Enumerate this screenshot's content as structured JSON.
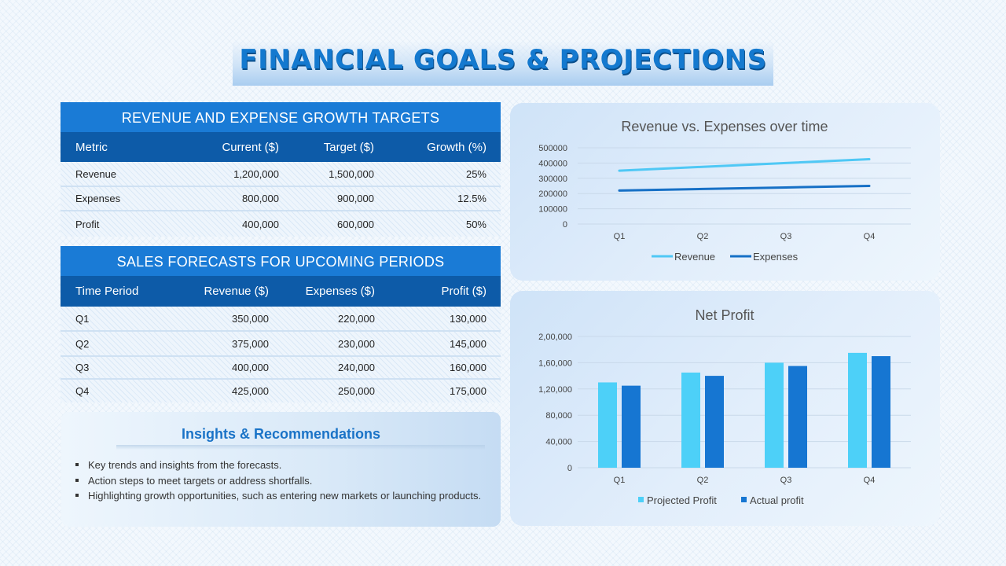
{
  "title": "FINANCIAL GOALS & PROJECTIONS",
  "table1": {
    "title": "REVENUE AND EXPENSE GROWTH TARGETS",
    "headers": [
      "Metric",
      "Current ($)",
      "Target ($)",
      "Growth (%)"
    ],
    "rows": [
      [
        "Revenue",
        "1,200,000",
        "1,500,000",
        "25%"
      ],
      [
        "Expenses",
        "800,000",
        "900,000",
        "12.5%"
      ],
      [
        "Profit",
        "400,000",
        "600,000",
        "50%"
      ]
    ]
  },
  "table2": {
    "title": "SALES FORECASTS FOR UPCOMING PERIODS",
    "headers": [
      "Time Period",
      "Revenue ($)",
      "Expenses ($)",
      "Profit ($)"
    ],
    "rows": [
      [
        "Q1",
        "350,000",
        "220,000",
        "130,000"
      ],
      [
        "Q2",
        "375,000",
        "230,000",
        "145,000"
      ],
      [
        "Q3",
        "400,000",
        "240,000",
        "160,000"
      ],
      [
        "Q4",
        "425,000",
        "250,000",
        "175,000"
      ]
    ]
  },
  "insights": {
    "title": "Insights & Recommendations",
    "items": [
      "Key trends and insights from the forecasts.",
      "Action steps to meet targets or address shortfalls.",
      "Highlighting growth opportunities, such as entering new markets or launching products."
    ]
  },
  "chart_data": [
    {
      "type": "line",
      "title": "Revenue vs. Expenses over time",
      "categories": [
        "Q1",
        "Q2",
        "Q3",
        "Q4"
      ],
      "series": [
        {
          "name": "Revenue",
          "values": [
            350000,
            375000,
            400000,
            425000
          ],
          "color": "#4fc8f5"
        },
        {
          "name": "Expenses",
          "values": [
            220000,
            230000,
            240000,
            250000
          ],
          "color": "#1670c6"
        }
      ],
      "ylim": [
        0,
        500000
      ],
      "yticks": [
        "500000",
        "400000",
        "300000",
        "200000",
        "100000",
        "0"
      ],
      "grid": true,
      "legend": "bottom"
    },
    {
      "type": "bar",
      "title": "Net Profit",
      "categories": [
        "Q1",
        "Q2",
        "Q3",
        "Q4"
      ],
      "series": [
        {
          "name": "Projected Profit",
          "values": [
            130000,
            145000,
            160000,
            175000
          ],
          "color": "#4dd0f8"
        },
        {
          "name": "Actual profit",
          "values": [
            125000,
            140000,
            155000,
            170000
          ],
          "color": "#1676d2"
        }
      ],
      "ylim": [
        0,
        200000
      ],
      "yticks": [
        "2,00,000",
        "1,60,000",
        "1,20,000",
        "80,000",
        "40,000",
        "0"
      ],
      "grid": true,
      "legend": "bottom"
    }
  ]
}
